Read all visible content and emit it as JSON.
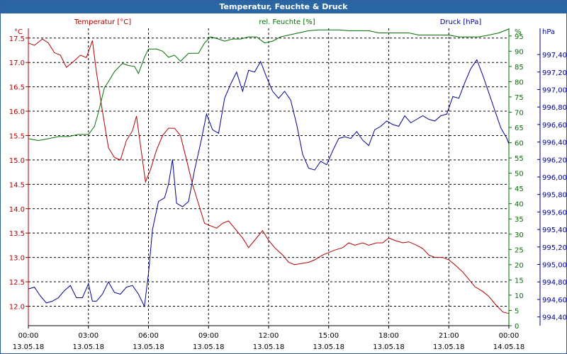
{
  "window": {
    "title": "Temperatur, Feuchte & Druck"
  },
  "colors": {
    "temperature": "#b00000",
    "humidity": "#007000",
    "pressure": "#000090",
    "grid": "#000000",
    "title_bar": "#2a65a4"
  },
  "chart_data": {
    "type": "line",
    "title": "Temperatur, Feuchte & Druck",
    "x_ticks": [
      {
        "time": "00:00",
        "date": "13.05.18",
        "h": 0
      },
      {
        "time": "03:00",
        "date": "13.05.18",
        "h": 3
      },
      {
        "time": "06:00",
        "date": "13.05.18",
        "h": 6
      },
      {
        "time": "09:00",
        "date": "13.05.18",
        "h": 9
      },
      {
        "time": "12:00",
        "date": "13.05.18",
        "h": 12
      },
      {
        "time": "15:00",
        "date": "13.05.18",
        "h": 15
      },
      {
        "time": "18:00",
        "date": "13.05.18",
        "h": 18
      },
      {
        "time": "21:00",
        "date": "13.05.18",
        "h": 21
      },
      {
        "time": "00:00",
        "date": "14.05.18",
        "h": 24
      }
    ],
    "xlim": [
      0,
      24
    ],
    "axes": {
      "temperature": {
        "label": "Temperatur [°C]",
        "unit": "°C",
        "ylim": [
          11.6,
          17.7
        ],
        "ticks": [
          "17.5",
          "17.0",
          "16.5",
          "16.0",
          "15.5",
          "15.0",
          "14.5",
          "14.0",
          "13.5",
          "13.0",
          "12.5",
          "12.0"
        ]
      },
      "humidity": {
        "label": "rel. Feuchte [%]",
        "unit": "%",
        "ylim": [
          0,
          97.5
        ],
        "ticks": [
          "95",
          "90",
          "85",
          "80",
          "75",
          "70",
          "65",
          "60",
          "55",
          "50",
          "45",
          "40",
          "35",
          "30",
          "25",
          "20",
          "15",
          "10",
          "5",
          "0"
        ]
      },
      "pressure": {
        "label": "Druck [hPa]",
        "unit": "hPa",
        "ylim": [
          994.3,
          997.7
        ],
        "ticks": [
          "997,40",
          "997,20",
          "997,00",
          "996,80",
          "996,60",
          "996,40",
          "996,20",
          "996,00",
          "995,80",
          "995,60",
          "995,40",
          "995,20",
          "995,00",
          "994,80",
          "994,60",
          "994,40"
        ]
      }
    },
    "series": [
      {
        "name": "Temperatur",
        "axis": "temperature",
        "points": [
          [
            0,
            17.4
          ],
          [
            0.3,
            17.35
          ],
          [
            0.7,
            17.48
          ],
          [
            1.0,
            17.4
          ],
          [
            1.3,
            17.2
          ],
          [
            1.6,
            17.15
          ],
          [
            1.9,
            16.9
          ],
          [
            2.2,
            17.0
          ],
          [
            2.6,
            17.15
          ],
          [
            2.9,
            17.1
          ],
          [
            3.2,
            17.45
          ],
          [
            3.4,
            16.8
          ],
          [
            3.7,
            16.0
          ],
          [
            4.0,
            15.25
          ],
          [
            4.3,
            15.05
          ],
          [
            4.6,
            15.0
          ],
          [
            4.9,
            15.4
          ],
          [
            5.2,
            15.6
          ],
          [
            5.4,
            15.9
          ],
          [
            5.6,
            15.3
          ],
          [
            5.85,
            14.55
          ],
          [
            6.1,
            14.8
          ],
          [
            6.4,
            15.2
          ],
          [
            6.7,
            15.5
          ],
          [
            7.0,
            15.65
          ],
          [
            7.3,
            15.65
          ],
          [
            7.6,
            15.5
          ],
          [
            7.9,
            15.0
          ],
          [
            8.2,
            14.5
          ],
          [
            8.5,
            14.1
          ],
          [
            8.8,
            13.7
          ],
          [
            9.1,
            13.65
          ],
          [
            9.4,
            13.6
          ],
          [
            9.7,
            13.7
          ],
          [
            10.0,
            13.75
          ],
          [
            10.3,
            13.6
          ],
          [
            10.7,
            13.4
          ],
          [
            11.0,
            13.2
          ],
          [
            11.3,
            13.35
          ],
          [
            11.7,
            13.55
          ],
          [
            12.0,
            13.35
          ],
          [
            12.3,
            13.2
          ],
          [
            12.7,
            13.05
          ],
          [
            13.0,
            12.9
          ],
          [
            13.3,
            12.85
          ],
          [
            13.7,
            12.88
          ],
          [
            14.0,
            12.9
          ],
          [
            14.3,
            12.95
          ],
          [
            14.7,
            13.05
          ],
          [
            15.0,
            13.1
          ],
          [
            15.3,
            13.15
          ],
          [
            15.7,
            13.2
          ],
          [
            16.0,
            13.3
          ],
          [
            16.3,
            13.25
          ],
          [
            16.7,
            13.3
          ],
          [
            17.0,
            13.25
          ],
          [
            17.4,
            13.3
          ],
          [
            17.7,
            13.3
          ],
          [
            18.0,
            13.4
          ],
          [
            18.3,
            13.35
          ],
          [
            18.7,
            13.3
          ],
          [
            19.0,
            13.32
          ],
          [
            19.4,
            13.25
          ],
          [
            19.7,
            13.18
          ],
          [
            20.0,
            13.05
          ],
          [
            20.3,
            13.0
          ],
          [
            20.7,
            13.0
          ],
          [
            21.0,
            12.95
          ],
          [
            21.3,
            12.85
          ],
          [
            21.7,
            12.7
          ],
          [
            22.0,
            12.55
          ],
          [
            22.3,
            12.4
          ],
          [
            22.7,
            12.3
          ],
          [
            23.0,
            12.2
          ],
          [
            23.3,
            12.05
          ],
          [
            23.7,
            11.88
          ],
          [
            24.0,
            11.85
          ]
        ]
      },
      {
        "name": "rel. Feuchte",
        "axis": "humidity",
        "points": [
          [
            0,
            61.3
          ],
          [
            0.5,
            60.7
          ],
          [
            1.0,
            61.3
          ],
          [
            1.5,
            62.0
          ],
          [
            2.0,
            62.0
          ],
          [
            2.5,
            62.7
          ],
          [
            3.0,
            62.7
          ],
          [
            3.3,
            65.3
          ],
          [
            3.5,
            70.0
          ],
          [
            3.8,
            78.0
          ],
          [
            4.0,
            80.0
          ],
          [
            4.3,
            83.3
          ],
          [
            4.7,
            86.0
          ],
          [
            5.0,
            85.3
          ],
          [
            5.3,
            85.0
          ],
          [
            5.5,
            82.7
          ],
          [
            5.8,
            88.0
          ],
          [
            6.0,
            90.7
          ],
          [
            6.4,
            90.7
          ],
          [
            6.7,
            90.0
          ],
          [
            7.0,
            88.0
          ],
          [
            7.3,
            88.7
          ],
          [
            7.6,
            86.7
          ],
          [
            8.0,
            89.3
          ],
          [
            8.5,
            89.3
          ],
          [
            8.8,
            92.7
          ],
          [
            9.1,
            94.7
          ],
          [
            9.5,
            94.0
          ],
          [
            9.8,
            93.3
          ],
          [
            10.2,
            94.0
          ],
          [
            10.6,
            94.0
          ],
          [
            11.0,
            94.7
          ],
          [
            11.4,
            94.7
          ],
          [
            11.8,
            92.7
          ],
          [
            12.2,
            93.3
          ],
          [
            12.6,
            94.7
          ],
          [
            13.0,
            95.3
          ],
          [
            13.5,
            96.0
          ],
          [
            14.0,
            96.7
          ],
          [
            14.5,
            97.0
          ],
          [
            15.0,
            97.0
          ],
          [
            15.5,
            97.0
          ],
          [
            16.0,
            96.7
          ],
          [
            16.5,
            96.7
          ],
          [
            17.0,
            96.7
          ],
          [
            17.5,
            96.0
          ],
          [
            18.0,
            96.0
          ],
          [
            18.5,
            96.0
          ],
          [
            19.0,
            96.0
          ],
          [
            19.5,
            95.3
          ],
          [
            20.0,
            95.3
          ],
          [
            20.5,
            95.3
          ],
          [
            21.0,
            95.3
          ],
          [
            21.5,
            94.7
          ],
          [
            22.0,
            94.7
          ],
          [
            22.5,
            94.7
          ],
          [
            23.0,
            95.3
          ],
          [
            23.5,
            96.0
          ],
          [
            24.0,
            97.3
          ]
        ]
      },
      {
        "name": "Druck",
        "axis": "pressure",
        "points": [
          [
            0,
            994.72
          ],
          [
            0.3,
            994.74
          ],
          [
            0.6,
            994.64
          ],
          [
            0.9,
            994.56
          ],
          [
            1.2,
            994.58
          ],
          [
            1.5,
            994.62
          ],
          [
            1.8,
            994.7
          ],
          [
            2.1,
            994.76
          ],
          [
            2.4,
            994.62
          ],
          [
            2.7,
            994.62
          ],
          [
            3.0,
            994.78
          ],
          [
            3.2,
            994.58
          ],
          [
            3.4,
            994.58
          ],
          [
            3.7,
            994.66
          ],
          [
            4.0,
            994.8
          ],
          [
            4.3,
            994.68
          ],
          [
            4.6,
            994.66
          ],
          [
            4.9,
            994.74
          ],
          [
            5.2,
            994.76
          ],
          [
            5.5,
            994.66
          ],
          [
            5.8,
            994.52
          ],
          [
            6.0,
            994.9
          ],
          [
            6.2,
            995.4
          ],
          [
            6.5,
            995.72
          ],
          [
            6.8,
            995.76
          ],
          [
            7.0,
            995.92
          ],
          [
            7.2,
            996.2
          ],
          [
            7.4,
            995.7
          ],
          [
            7.7,
            995.66
          ],
          [
            8.0,
            995.72
          ],
          [
            8.3,
            996.08
          ],
          [
            8.6,
            996.38
          ],
          [
            8.9,
            996.72
          ],
          [
            9.2,
            996.54
          ],
          [
            9.5,
            996.5
          ],
          [
            9.8,
            996.9
          ],
          [
            10.1,
            997.06
          ],
          [
            10.4,
            997.2
          ],
          [
            10.7,
            996.98
          ],
          [
            11.0,
            997.22
          ],
          [
            11.3,
            997.2
          ],
          [
            11.6,
            997.32
          ],
          [
            11.9,
            997.14
          ],
          [
            12.2,
            996.98
          ],
          [
            12.5,
            996.9
          ],
          [
            12.8,
            996.98
          ],
          [
            13.1,
            996.88
          ],
          [
            13.4,
            996.6
          ],
          [
            13.7,
            996.26
          ],
          [
            14.0,
            996.1
          ],
          [
            14.3,
            996.08
          ],
          [
            14.6,
            996.18
          ],
          [
            14.9,
            996.14
          ],
          [
            15.2,
            996.3
          ],
          [
            15.5,
            996.44
          ],
          [
            15.8,
            996.46
          ],
          [
            16.1,
            996.44
          ],
          [
            16.4,
            996.52
          ],
          [
            16.7,
            996.42
          ],
          [
            17.0,
            996.36
          ],
          [
            17.3,
            996.54
          ],
          [
            17.6,
            996.58
          ],
          [
            17.9,
            996.64
          ],
          [
            18.2,
            996.6
          ],
          [
            18.5,
            996.58
          ],
          [
            18.8,
            996.7
          ],
          [
            19.1,
            996.62
          ],
          [
            19.4,
            996.66
          ],
          [
            19.7,
            996.7
          ],
          [
            20.0,
            996.66
          ],
          [
            20.3,
            996.64
          ],
          [
            20.6,
            996.7
          ],
          [
            20.9,
            996.72
          ],
          [
            21.2,
            996.92
          ],
          [
            21.5,
            996.9
          ],
          [
            21.8,
            997.08
          ],
          [
            22.1,
            997.24
          ],
          [
            22.4,
            997.34
          ],
          [
            22.7,
            997.16
          ],
          [
            23.0,
            996.96
          ],
          [
            23.3,
            996.76
          ],
          [
            23.6,
            996.56
          ],
          [
            23.9,
            996.44
          ],
          [
            24.0,
            996.38
          ]
        ]
      }
    ]
  }
}
